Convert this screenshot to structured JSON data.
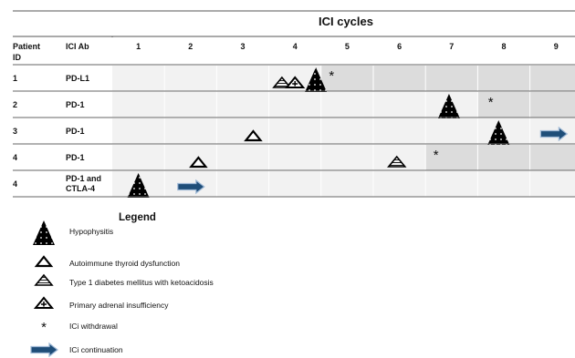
{
  "title": "ICI cycles",
  "columns": {
    "patient": [
      "Patient",
      "ID"
    ],
    "ab": "ICI Ab"
  },
  "cycles": [
    "1",
    "2",
    "3",
    "4",
    "5",
    "6",
    "7",
    "8",
    "9"
  ],
  "rows": [
    {
      "id": "1",
      "ab": [
        "PD-L1"
      ],
      "events": [
        {
          "type": "diabetes",
          "cycle": 3.75
        },
        {
          "type": "adrenal",
          "cycle": 4.0
        },
        {
          "type": "hypophysitis",
          "cycle": 4.4
        },
        {
          "type": "withdrawal",
          "cycle": 4.7
        }
      ],
      "shaded_from": 4.5
    },
    {
      "id": "2",
      "ab": [
        "PD-1"
      ],
      "events": [
        {
          "type": "hypophysitis",
          "cycle": 6.95
        },
        {
          "type": "withdrawal",
          "cycle": 7.75
        }
      ],
      "shaded_from": 7.5
    },
    {
      "id": "3",
      "ab": [
        "PD-1"
      ],
      "events": [
        {
          "type": "thyroid",
          "cycle": 3.2
        },
        {
          "type": "hypophysitis",
          "cycle": 7.9
        },
        {
          "type": "continuation",
          "cycle": 8.95
        }
      ],
      "shaded_from": null
    },
    {
      "id": "4",
      "ab": [
        "PD-1"
      ],
      "events": [
        {
          "type": "thyroid",
          "cycle": 2.15
        },
        {
          "type": "diabetes",
          "cycle": 5.95
        },
        {
          "type": "withdrawal",
          "cycle": 6.7
        }
      ],
      "shaded_from": 6.5
    },
    {
      "id": "4",
      "ab": [
        "PD-1 and",
        "CTLA-4"
      ],
      "events": [
        {
          "type": "hypophysitis",
          "cycle": 1.0
        },
        {
          "type": "continuation",
          "cycle": 2.0
        }
      ],
      "shaded_from": null
    }
  ],
  "legend": {
    "title": "Legend",
    "items": [
      {
        "type": "hypophysitis",
        "label": "Hypophysitis"
      },
      {
        "type": "thyroid",
        "label": "Autoimmune thyroid dysfunction"
      },
      {
        "type": "diabetes",
        "label": "Type 1 diabetes mellitus with ketoacidosis"
      },
      {
        "type": "adrenal",
        "label": "Primary adrenal insufficiency"
      },
      {
        "type": "withdrawal",
        "label": "ICi withdrawal"
      },
      {
        "type": "continuation",
        "label": "ICi continuation"
      }
    ]
  },
  "colors": {
    "light_band": "#f2f2f2",
    "dark_band": "#dcdcdc",
    "arrow_fill": "#1f4e79",
    "arrow_stroke": "#9fb9d6"
  }
}
